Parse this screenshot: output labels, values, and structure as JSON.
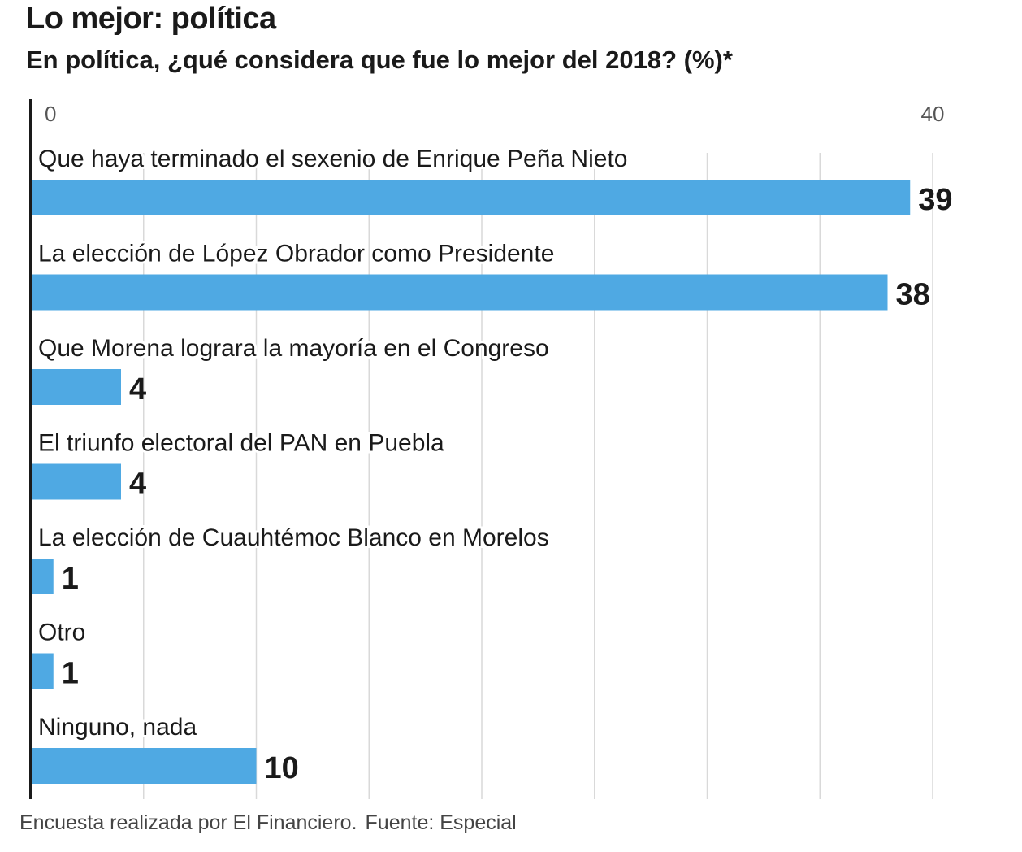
{
  "title": "Lo mejor: política",
  "subtitle": "En política, ¿qué considera que fue lo mejor del 2018? (%)*",
  "footer": {
    "note": "Encuesta realizada por El Financiero.",
    "source": "Fuente: Especial"
  },
  "colors": {
    "bar": "#4fa9e3",
    "grid": "#d9d9d9",
    "axis": "#1a1a1a",
    "text": "#1a1a1a"
  },
  "chart_data": {
    "type": "bar",
    "orientation": "horizontal",
    "categories": [
      "Que haya terminado el sexenio de Enrique Peña Nieto",
      "La elección de López Obrador como Presidente",
      "Que Morena lograra la mayoría en el Congreso",
      "El triunfo electoral del PAN en Puebla",
      "La elección de Cuauhtémoc Blanco en Morelos",
      "Otro",
      "Ninguno, nada"
    ],
    "values": [
      39,
      38,
      4,
      4,
      1,
      1,
      10
    ],
    "data_labels": [
      "39",
      "38",
      "4",
      "4",
      "1",
      "1",
      "10"
    ],
    "xlim": [
      0,
      40
    ],
    "tick_labels": [
      "0",
      "40"
    ],
    "grid_step": 5,
    "grid": true,
    "legend": "none"
  }
}
